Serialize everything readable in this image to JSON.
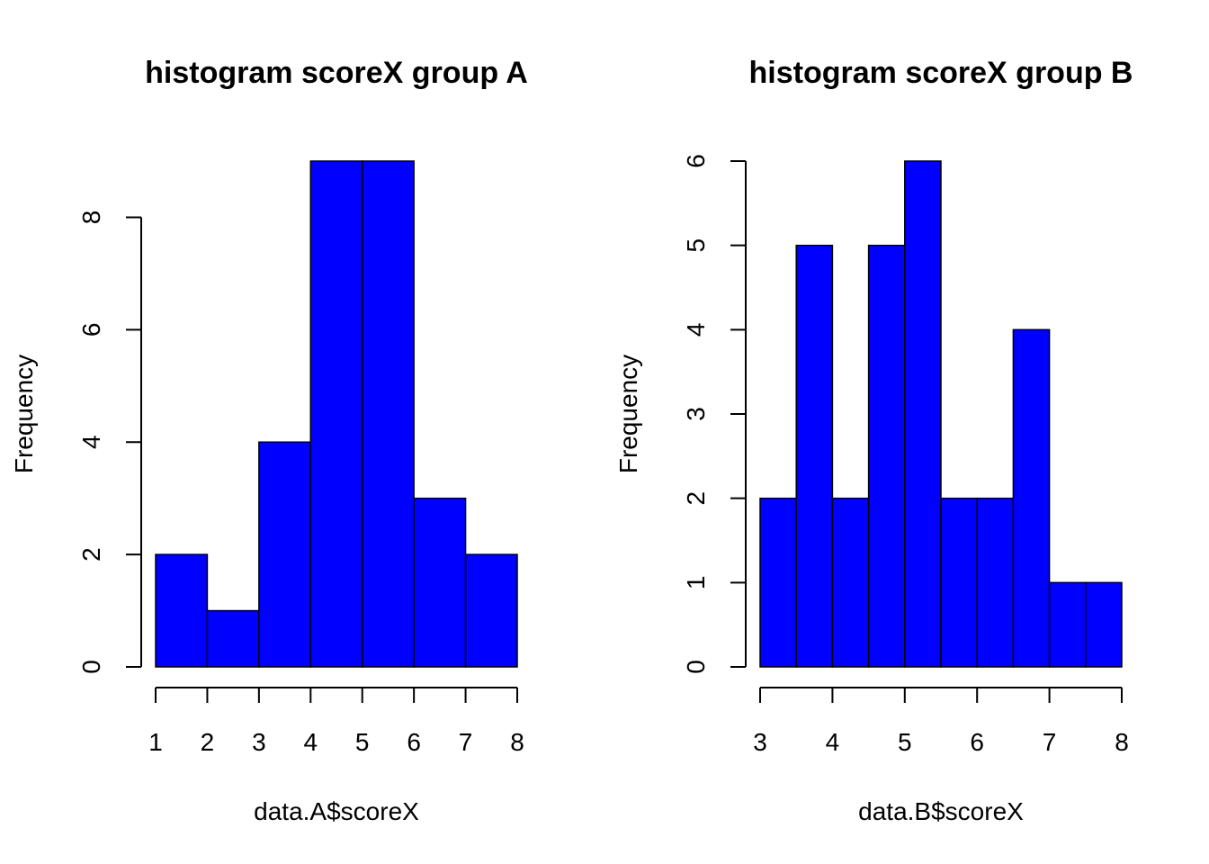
{
  "chart_data": [
    {
      "type": "bar",
      "title": "histogram scoreX group A",
      "xlabel": "data.A$scoreX",
      "ylabel": "Frequency",
      "bins": [
        [
          1,
          2
        ],
        [
          2,
          3
        ],
        [
          3,
          4
        ],
        [
          4,
          5
        ],
        [
          5,
          6
        ],
        [
          6,
          7
        ],
        [
          7,
          8
        ]
      ],
      "values": [
        2,
        1,
        4,
        9,
        9,
        3,
        2
      ],
      "xlim": [
        1,
        8
      ],
      "ylim": [
        0,
        9
      ],
      "x_ticks": [
        1,
        2,
        3,
        4,
        5,
        6,
        7,
        8
      ],
      "y_ticks": [
        0,
        2,
        4,
        6,
        8
      ],
      "grid": false,
      "bar_color": "#0000ff"
    },
    {
      "type": "bar",
      "title": "histogram scoreX group B",
      "xlabel": "data.B$scoreX",
      "ylabel": "Frequency",
      "bins": [
        [
          3,
          3.5
        ],
        [
          3.5,
          4
        ],
        [
          4,
          4.5
        ],
        [
          4.5,
          5
        ],
        [
          5,
          5.5
        ],
        [
          5.5,
          6
        ],
        [
          6,
          6.5
        ],
        [
          6.5,
          7
        ],
        [
          7,
          7.5
        ],
        [
          7.5,
          8
        ]
      ],
      "values": [
        2,
        5,
        2,
        5,
        6,
        2,
        2,
        4,
        1,
        1
      ],
      "xlim": [
        3,
        8
      ],
      "ylim": [
        0,
        6
      ],
      "x_ticks": [
        3,
        4,
        5,
        6,
        7,
        8
      ],
      "y_ticks": [
        0,
        1,
        2,
        3,
        4,
        5,
        6
      ],
      "grid": false,
      "bar_color": "#0000ff"
    }
  ]
}
